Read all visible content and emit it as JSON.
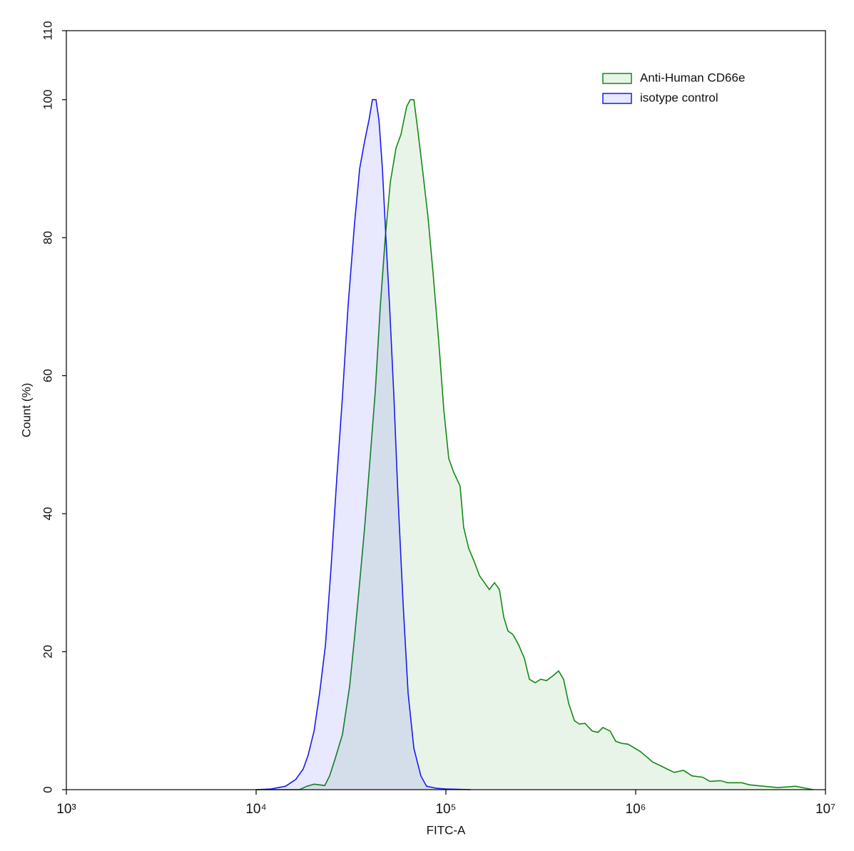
{
  "chart_data": {
    "type": "histogram-overlay",
    "xlabel": "FITC-A",
    "ylabel": "Count  (%)",
    "xscale": "log",
    "xlim": [
      1000,
      10000000
    ],
    "xticks": [
      {
        "value": 1000,
        "label": "10³"
      },
      {
        "value": 10000,
        "label": "10⁴"
      },
      {
        "value": 100000,
        "label": "10⁵"
      },
      {
        "value": 1000000,
        "label": "10⁶"
      },
      {
        "value": 10000000,
        "label": "10⁷"
      }
    ],
    "ylim": [
      0,
      110
    ],
    "yticks": [
      0,
      20,
      40,
      60,
      80,
      100,
      110
    ],
    "legend": "top-right",
    "series": [
      {
        "name": "Anti-Human CD66e",
        "color": "#138a13",
        "fill": "rgba(0,128,0,0.085)",
        "x": [
          10000,
          16900,
          18500,
          20200,
          23000,
          24400,
          26100,
          28500,
          31100,
          33000,
          35100,
          37300,
          39600,
          42500,
          45100,
          47900,
          50900,
          54600,
          58000,
          62100,
          64900,
          67800,
          70800,
          75200,
          80500,
          85500,
          91600,
          97500,
          103500,
          109900,
          118800,
          124100,
          131800,
          141300,
          150300,
          159600,
          169400,
          180300,
          191400,
          201800,
          212300,
          225400,
          241500,
          259400,
          275400,
          295100,
          316200,
          338800,
          366400,
          392600,
          416900,
          443600,
          475300,
          504700,
          540800,
          590200,
          632400,
          671400,
          732800,
          785200,
          849300,
          910000,
          990800,
          1062000,
          1138000,
          1230000,
          1343000,
          1462000,
          1596000,
          1786000,
          1982000,
          2256000,
          2460000,
          2800000,
          3055000,
          3631000,
          3963000,
          4710000,
          5598000,
          6383000,
          6950000,
          7907000,
          8630000
        ],
        "values": [
          0,
          0,
          0.5,
          0.8,
          0.6,
          2,
          4.5,
          8,
          15,
          22,
          30,
          38,
          47,
          58,
          70,
          80,
          88,
          93,
          95,
          99,
          100,
          100,
          96,
          90,
          83,
          75,
          65,
          55,
          48,
          46,
          44,
          38,
          35,
          33,
          31,
          30,
          29,
          30,
          29,
          25,
          23,
          22.5,
          21,
          19,
          16,
          15.5,
          16,
          15.8,
          16.5,
          17.2,
          16,
          12.5,
          10,
          9.5,
          9.6,
          8.5,
          8.3,
          9,
          8.5,
          7,
          6.7,
          6.6,
          6,
          5.5,
          4.8,
          4,
          3.5,
          3,
          2.5,
          2.8,
          2,
          1.8,
          1.2,
          1.3,
          1,
          1,
          0.7,
          0.5,
          0.3,
          0.4,
          0.5,
          0.2,
          0
        ]
      },
      {
        "name": "isotype control",
        "color": "#1a1aee",
        "fill": "rgba(0,0,255,0.09)",
        "x": [
          10000,
          12000,
          14300,
          16200,
          17700,
          18800,
          20200,
          21600,
          23200,
          24800,
          26600,
          28500,
          30500,
          33000,
          35100,
          37300,
          39300,
          41000,
          42800,
          44400,
          46300,
          48300,
          50500,
          53200,
          56000,
          59500,
          63200,
          67800,
          73800,
          79100,
          89300,
          100000,
          135000
        ],
        "values": [
          0,
          0.1,
          0.5,
          1.5,
          3,
          5,
          8.5,
          14,
          21,
          32,
          45,
          57,
          70,
          82,
          90,
          94,
          97,
          100,
          100,
          97,
          90,
          80,
          70,
          57,
          42,
          27,
          14,
          6,
          2,
          0.5,
          0.2,
          0.1,
          0
        ]
      }
    ]
  }
}
